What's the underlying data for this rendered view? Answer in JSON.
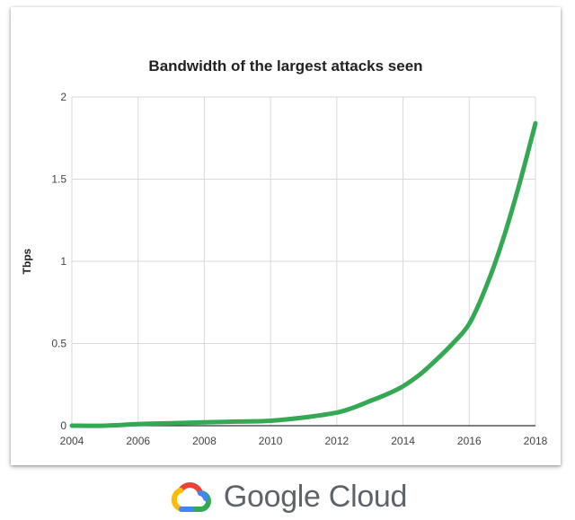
{
  "chart_data": {
    "type": "line",
    "title": "Bandwidth of the largest attacks seen",
    "xlabel": "",
    "ylabel": "Tbps",
    "xlim": [
      2004,
      2018
    ],
    "ylim": [
      0,
      2
    ],
    "x_ticks": [
      "2004",
      "2006",
      "2008",
      "2010",
      "2012",
      "2014",
      "2016",
      "2018"
    ],
    "y_ticks": [
      "0",
      "0.5",
      "1",
      "1.5",
      "2"
    ],
    "grid": true,
    "legend": "none",
    "series": [
      {
        "color": "#34a853",
        "x": [
          2004,
          2005,
          2006,
          2007,
          2008,
          2009,
          2010,
          2011,
          2012,
          2012.5,
          2013,
          2013.5,
          2014,
          2014.5,
          2015,
          2015.5,
          2016,
          2016.5,
          2017,
          2017.5,
          2018
        ],
        "y": [
          0.0,
          0.0,
          0.01,
          0.015,
          0.02,
          0.025,
          0.03,
          0.05,
          0.08,
          0.11,
          0.15,
          0.19,
          0.24,
          0.31,
          0.4,
          0.5,
          0.62,
          0.84,
          1.12,
          1.46,
          1.84
        ]
      }
    ]
  },
  "footer": {
    "logo_text": "Google Cloud"
  }
}
